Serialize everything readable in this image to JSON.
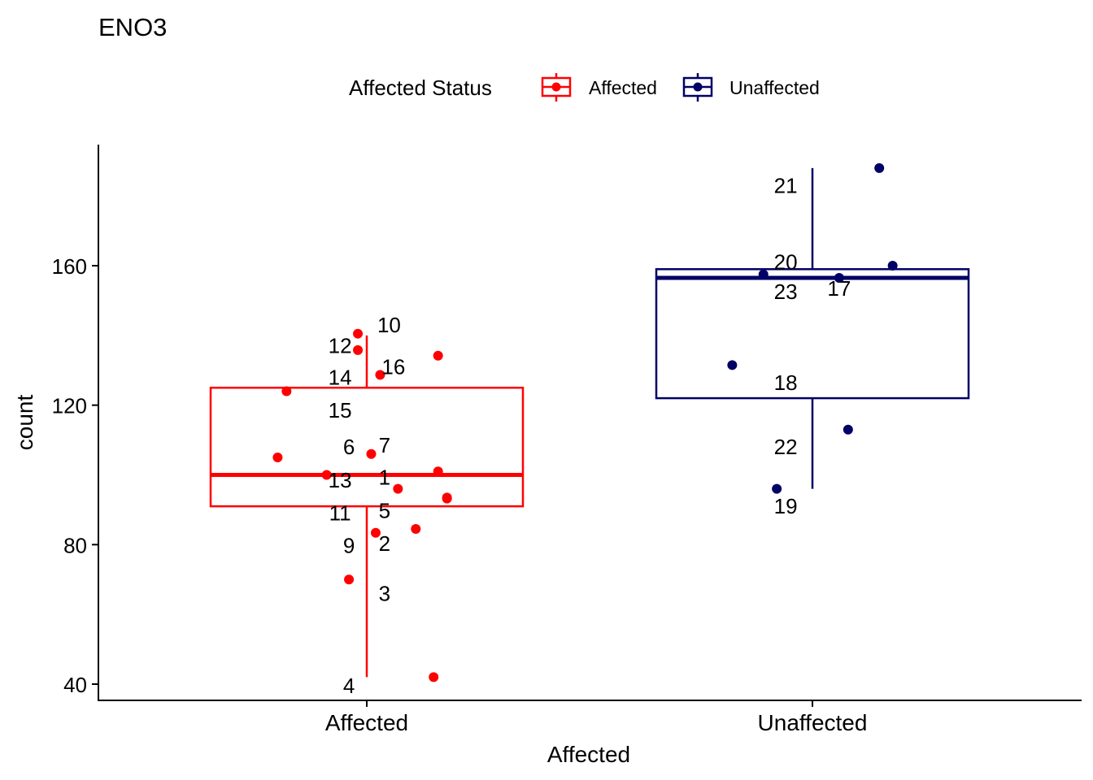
{
  "chart_data": {
    "type": "boxplot",
    "title": "ENO3",
    "xlabel": "Affected",
    "ylabel": "count",
    "ylim": [
      35,
      195
    ],
    "yticks": [
      40,
      80,
      120,
      160
    ],
    "categories": [
      "Affected",
      "Unaffected"
    ],
    "legend": {
      "title": "Affected Status",
      "position": "top",
      "entries": [
        {
          "label": "Affected",
          "color": "#FF0000"
        },
        {
          "label": "Unaffected",
          "color": "#000066"
        }
      ]
    },
    "boxes": [
      {
        "group": "Affected",
        "color": "#FF0000",
        "whisker_low": 42,
        "q1": 91,
        "median": 100,
        "q3": 125,
        "whisker_high": 140
      },
      {
        "group": "Unaffected",
        "color": "#000066",
        "whisker_low": 96,
        "q1": 122,
        "median": 156.5,
        "q3": 159,
        "whisker_high": 188
      }
    ],
    "points": [
      {
        "group": "Affected",
        "x": 0.98,
        "y": 140.5
      },
      {
        "group": "Affected",
        "x": 0.98,
        "y": 135.8
      },
      {
        "group": "Affected",
        "x": 1.16,
        "y": 134.2
      },
      {
        "group": "Affected",
        "x": 1.03,
        "y": 128.7
      },
      {
        "group": "Affected",
        "x": 0.82,
        "y": 124.0
      },
      {
        "group": "Affected",
        "x": 1.01,
        "y": 106.0
      },
      {
        "group": "Affected",
        "x": 0.8,
        "y": 105.0
      },
      {
        "group": "Affected",
        "x": 1.16,
        "y": 101.0
      },
      {
        "group": "Affected",
        "x": 0.91,
        "y": 100.0
      },
      {
        "group": "Affected",
        "x": 1.07,
        "y": 96.0
      },
      {
        "group": "Affected",
        "x": 1.18,
        "y": 93.5
      },
      {
        "group": "Affected",
        "x": 1.18,
        "y": 93.2
      },
      {
        "group": "Affected",
        "x": 1.11,
        "y": 84.5
      },
      {
        "group": "Affected",
        "x": 1.02,
        "y": 83.4
      },
      {
        "group": "Affected",
        "x": 0.96,
        "y": 70.0
      },
      {
        "group": "Affected",
        "x": 1.15,
        "y": 42.0
      },
      {
        "group": "Unaffected",
        "x": 2.15,
        "y": 188.0
      },
      {
        "group": "Unaffected",
        "x": 2.18,
        "y": 160.0
      },
      {
        "group": "Unaffected",
        "x": 1.89,
        "y": 157.5
      },
      {
        "group": "Unaffected",
        "x": 2.06,
        "y": 156.5
      },
      {
        "group": "Unaffected",
        "x": 1.82,
        "y": 131.5
      },
      {
        "group": "Unaffected",
        "x": 2.08,
        "y": 113.0
      },
      {
        "group": "Unaffected",
        "x": 1.92,
        "y": 96.0
      }
    ],
    "point_labels": [
      {
        "text": "10",
        "group": "Affected",
        "x": 1.05,
        "y": 143.0
      },
      {
        "text": "12",
        "group": "Affected",
        "x": 0.94,
        "y": 137.0
      },
      {
        "text": "16",
        "group": "Affected",
        "x": 1.06,
        "y": 131.0
      },
      {
        "text": "14",
        "group": "Affected",
        "x": 0.94,
        "y": 128.0
      },
      {
        "text": "15",
        "group": "Affected",
        "x": 0.94,
        "y": 118.5
      },
      {
        "text": "6",
        "group": "Affected",
        "x": 0.96,
        "y": 108.0
      },
      {
        "text": "7",
        "group": "Affected",
        "x": 1.04,
        "y": 108.5
      },
      {
        "text": "13",
        "group": "Affected",
        "x": 0.94,
        "y": 98.5
      },
      {
        "text": "1",
        "group": "Affected",
        "x": 1.04,
        "y": 99.3
      },
      {
        "text": "5",
        "group": "Affected",
        "x": 1.04,
        "y": 89.8
      },
      {
        "text": "11",
        "group": "Affected",
        "x": 0.94,
        "y": 89.0
      },
      {
        "text": "2",
        "group": "Affected",
        "x": 1.04,
        "y": 80.3
      },
      {
        "text": "9",
        "group": "Affected",
        "x": 0.96,
        "y": 79.7
      },
      {
        "text": "3",
        "group": "Affected",
        "x": 1.04,
        "y": 66.0
      },
      {
        "text": "4",
        "group": "Affected",
        "x": 0.96,
        "y": 39.5
      },
      {
        "text": "21",
        "group": "Unaffected",
        "x": 1.94,
        "y": 183.0
      },
      {
        "text": "20",
        "group": "Unaffected",
        "x": 1.94,
        "y": 161.0
      },
      {
        "text": "17",
        "group": "Unaffected",
        "x": 2.06,
        "y": 153.5
      },
      {
        "text": "23",
        "group": "Unaffected",
        "x": 1.94,
        "y": 152.5
      },
      {
        "text": "18",
        "group": "Unaffected",
        "x": 1.94,
        "y": 126.5
      },
      {
        "text": "22",
        "group": "Unaffected",
        "x": 1.94,
        "y": 108.0
      },
      {
        "text": "19",
        "group": "Unaffected",
        "x": 1.94,
        "y": 91.0
      }
    ]
  }
}
